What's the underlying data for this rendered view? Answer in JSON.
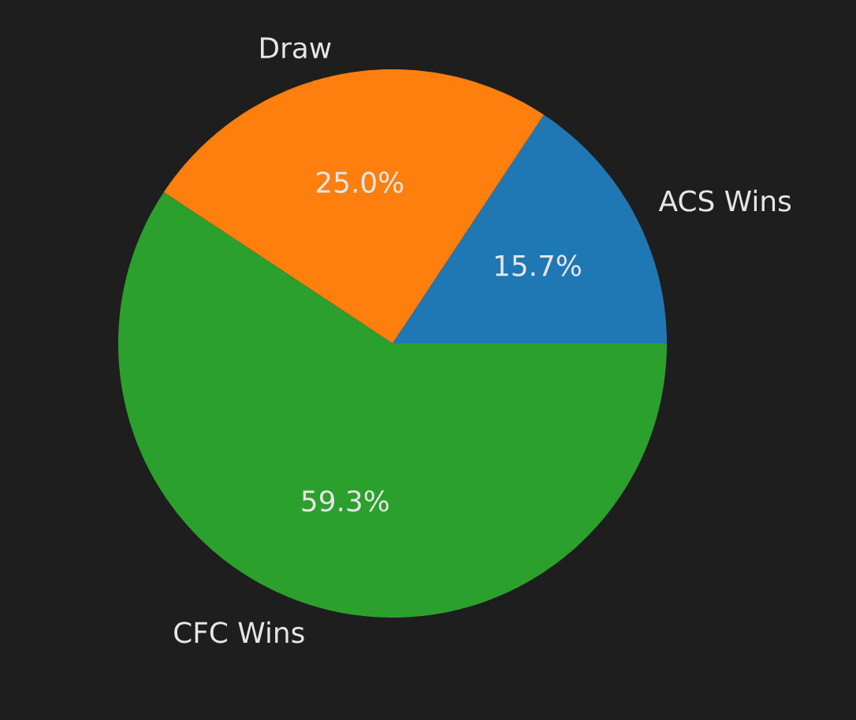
{
  "chart_data": {
    "type": "pie",
    "categories": [
      "ACS Wins",
      "Draw",
      "CFC Wins"
    ],
    "values": [
      15.7,
      25.0,
      59.3
    ],
    "colors": [
      "#1f77b4",
      "#ff7f0e",
      "#2ca02c"
    ],
    "value_labels": [
      "15.7%",
      "25.0%",
      "59.3%"
    ]
  }
}
